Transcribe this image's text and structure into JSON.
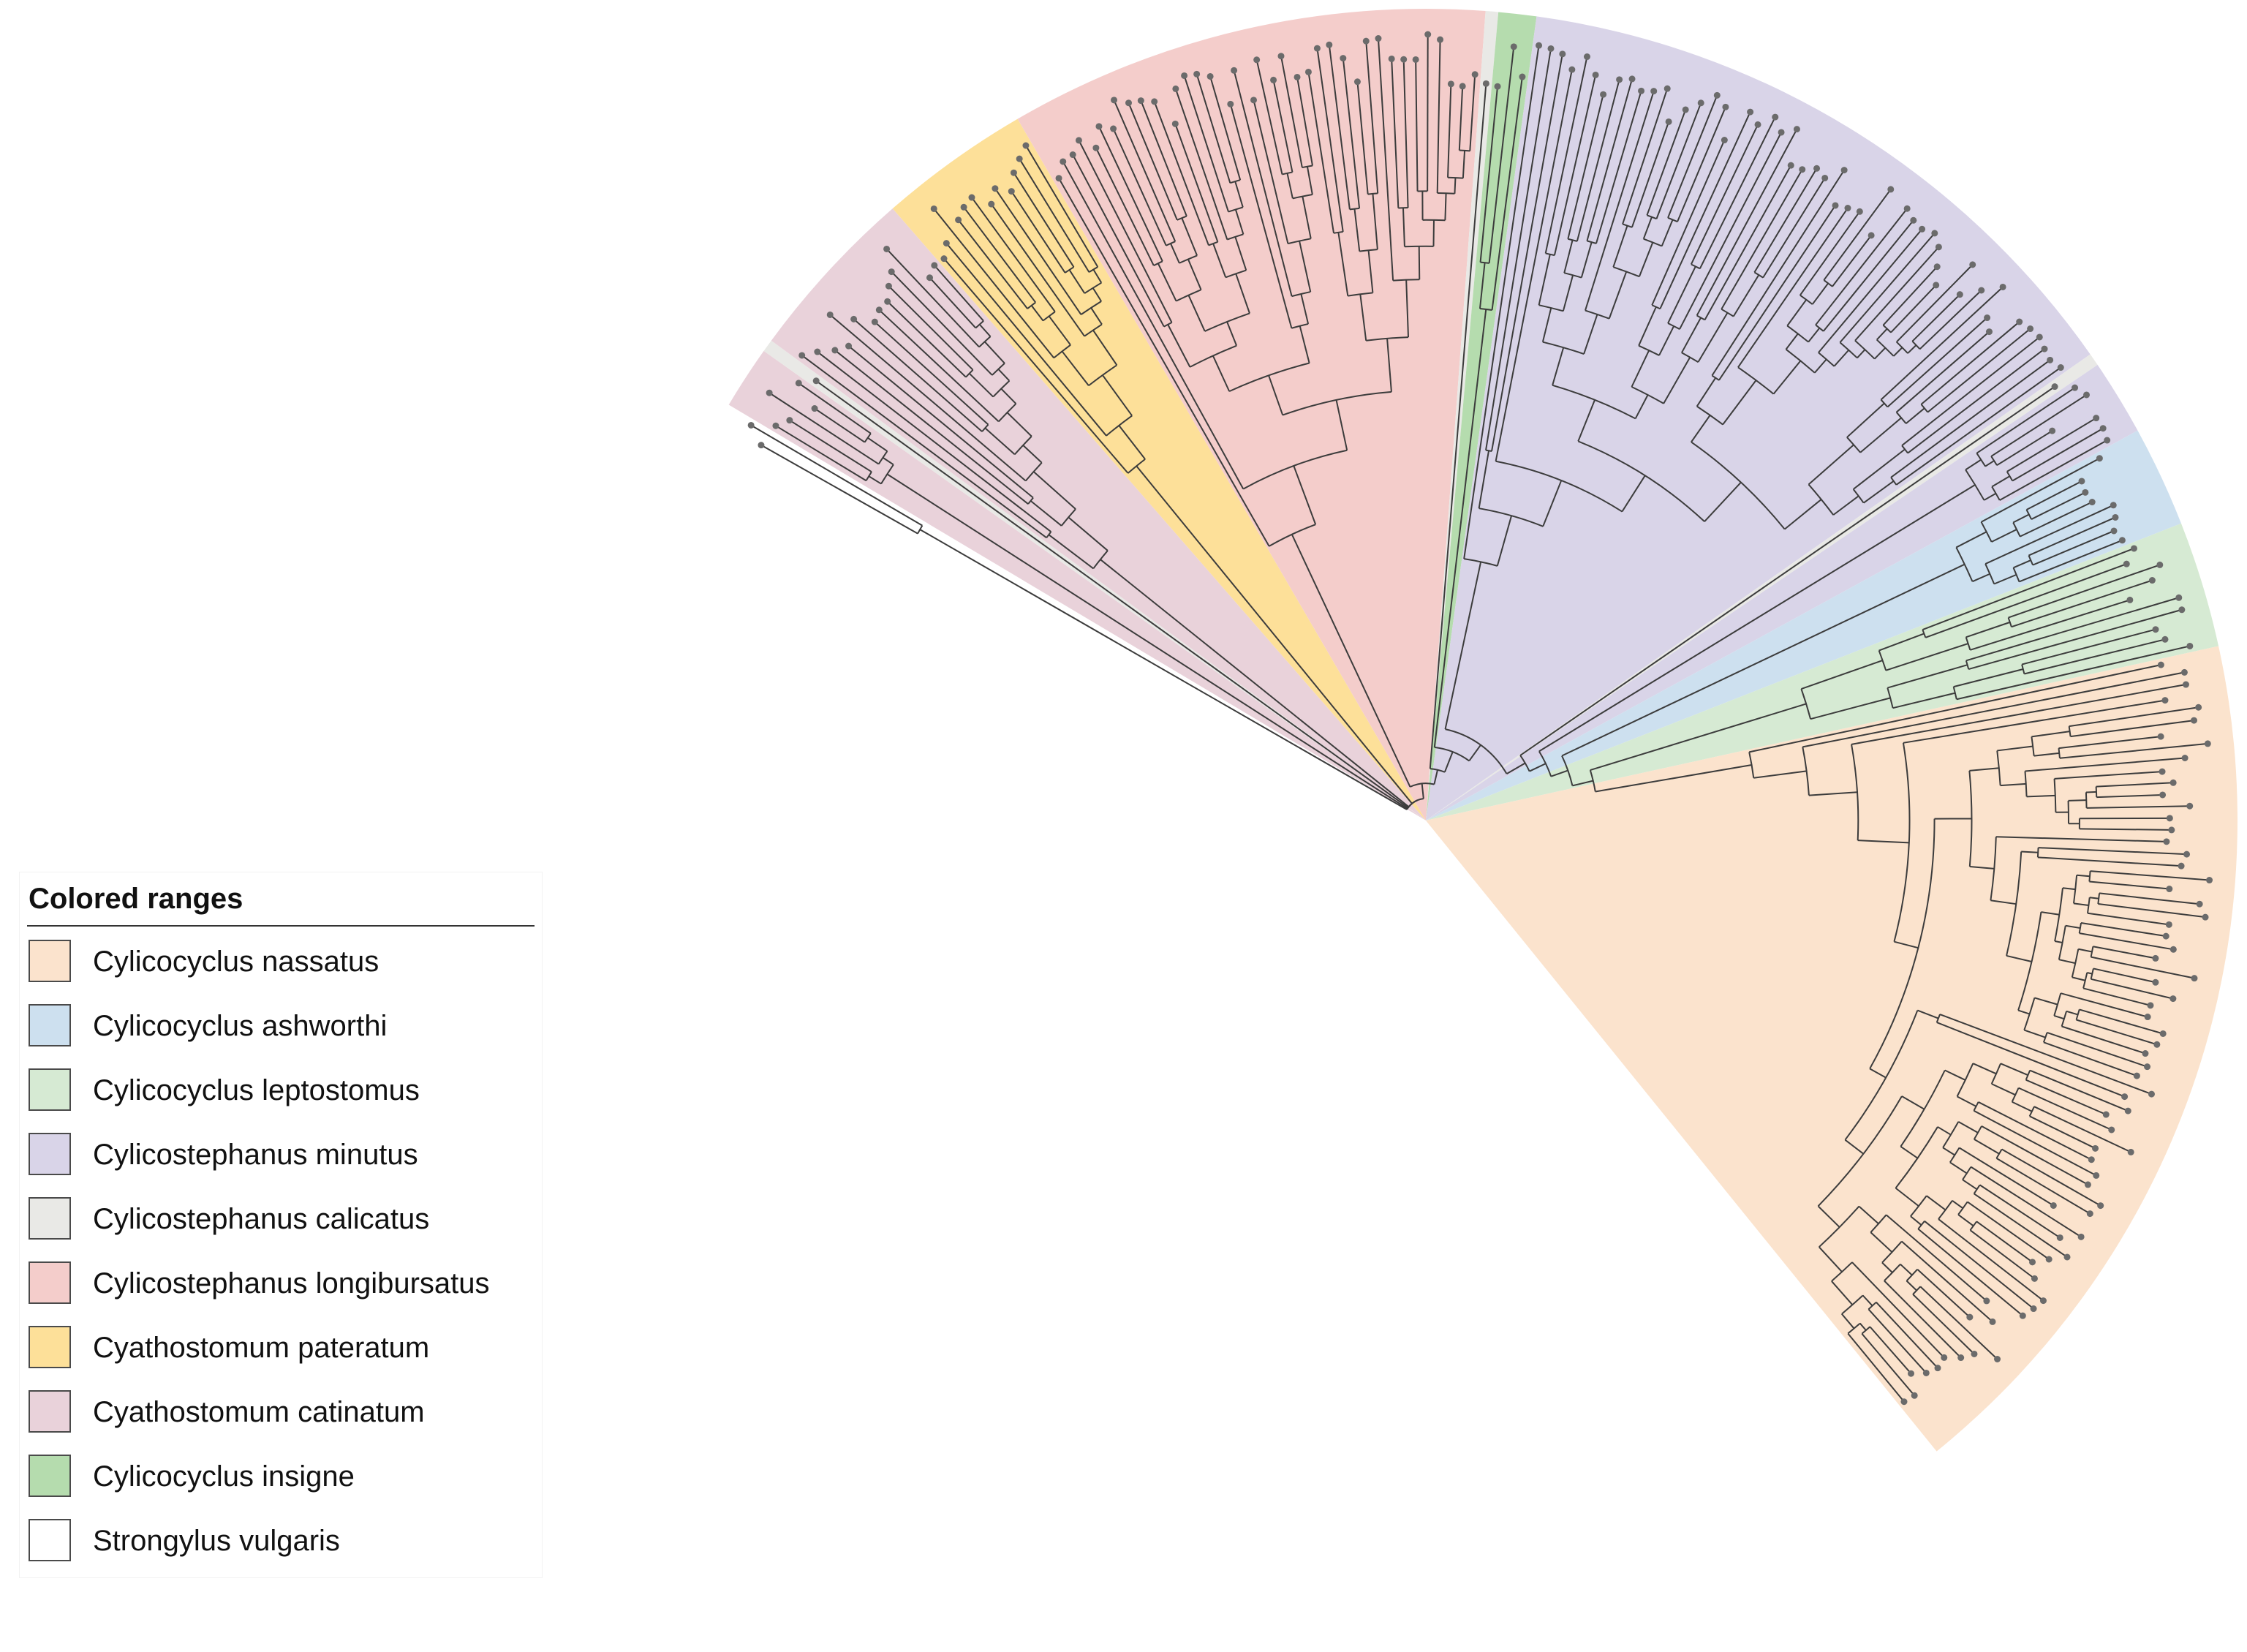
{
  "figure": {
    "type": "circular-phylogenetic-tree",
    "legend": {
      "title": "Colored ranges",
      "entries": [
        {
          "key": "nassatus",
          "label": "Cylicocyclus nassatus",
          "color": "#fbe3cd"
        },
        {
          "key": "ashworthi",
          "label": "Cylicocyclus ashworthi",
          "color": "#cde0ef"
        },
        {
          "key": "leptostomus",
          "label": "Cylicocyclus leptostomus",
          "color": "#d6ead3"
        },
        {
          "key": "minutus",
          "label": "Cylicostephanus minutus",
          "color": "#d9d4e8"
        },
        {
          "key": "calicatus",
          "label": "Cylicostephanus calicatus",
          "color": "#e9e9e6"
        },
        {
          "key": "longibursatus",
          "label": "Cylicostephanus longibursatus",
          "color": "#f4cdcb"
        },
        {
          "key": "pateratum",
          "label": "Cyathostomum pateratum",
          "color": "#fde099"
        },
        {
          "key": "catinatum",
          "label": "Cyathostomum catinatum",
          "color": "#e9d2da"
        },
        {
          "key": "insigne",
          "label": "Cylicocyclus insigne",
          "color": "#b5dcae"
        },
        {
          "key": "vulgaris",
          "label": "Strongylus vulgaris",
          "color": "#ffffff"
        }
      ]
    },
    "clades": [
      {
        "key": "vulgaris",
        "leaves": 2
      },
      {
        "key": "catinatum",
        "leaves": 5
      },
      {
        "key": "calicatus",
        "leaves": 1
      },
      {
        "key": "catinatum",
        "leaves": 14
      },
      {
        "key": "pateratum",
        "leaves": 12
      },
      {
        "key": "longibursatus",
        "leaves": 38
      },
      {
        "key": "calicatus",
        "leaves": 1
      },
      {
        "key": "insigne",
        "leaves": 3
      },
      {
        "key": "minutus",
        "leaves": 52
      },
      {
        "key": "calicatus",
        "leaves": 1
      },
      {
        "key": "minutus",
        "leaves": 6
      },
      {
        "key": "ashworthi",
        "leaves": 8
      },
      {
        "key": "leptostomus",
        "leaves": 10
      },
      {
        "key": "nassatus",
        "leaves": 70
      }
    ],
    "colors": {
      "branch": "#3c3c3c",
      "tip": "#6b6b6b",
      "legend_border": "#4a4a4a"
    }
  }
}
